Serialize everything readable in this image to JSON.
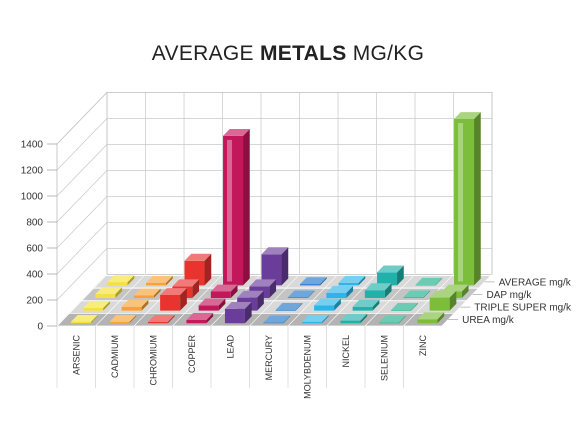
{
  "chart_data": {
    "type": "bar",
    "title_prefix": "AVERAGE ",
    "title_bold": "METALS",
    "title_suffix": " MG/KG",
    "categories": [
      "ARSENIC",
      "CADMIUM",
      "CHROMIUM",
      "COPPER",
      "LEAD",
      "MERCURY",
      "MOLYBDENUM",
      "NICKEL",
      "SELENIUM",
      "ZINC"
    ],
    "series": [
      {
        "name": "UREA mg/k",
        "values": [
          10,
          10,
          10,
          25,
          110,
          5,
          10,
          20,
          5,
          30
        ],
        "color": "#8cc63f"
      },
      {
        "name": "TRIPLE SUPER mg/k",
        "values": [
          20,
          30,
          120,
          40,
          100,
          5,
          40,
          30,
          5,
          100
        ],
        "color": "#8cc63f"
      },
      {
        "name": "DAP mg/k",
        "values": [
          30,
          20,
          90,
          50,
          90,
          5,
          40,
          60,
          5,
          50
        ],
        "color": "#8cc63f"
      },
      {
        "name": "AVERAGE mg/k",
        "values": [
          25,
          20,
          190,
          1150,
          240,
          10,
          20,
          100,
          5,
          1280
        ],
        "color": "#8cc63f"
      }
    ],
    "ylim": [
      0,
      1400
    ],
    "yticks": [
      0,
      200,
      400,
      600,
      800,
      1000,
      1200,
      1400
    ],
    "bar_colors": {
      "ARSENIC": "#f5e13a",
      "CADMIUM": "#f7a234",
      "CHROMIUM": "#e8332f",
      "COPPER": "#c2185b",
      "LEAD": "#6a3d9a",
      "MERCURY": "#1f77c9",
      "MOLYBDENUM": "#2bb5e8",
      "NICKEL": "#20b2aa",
      "SELENIUM": "#19b08a",
      "ZINC": "#7cbd3a"
    },
    "grid": true,
    "legend": "right (series labels on depth axis)"
  }
}
